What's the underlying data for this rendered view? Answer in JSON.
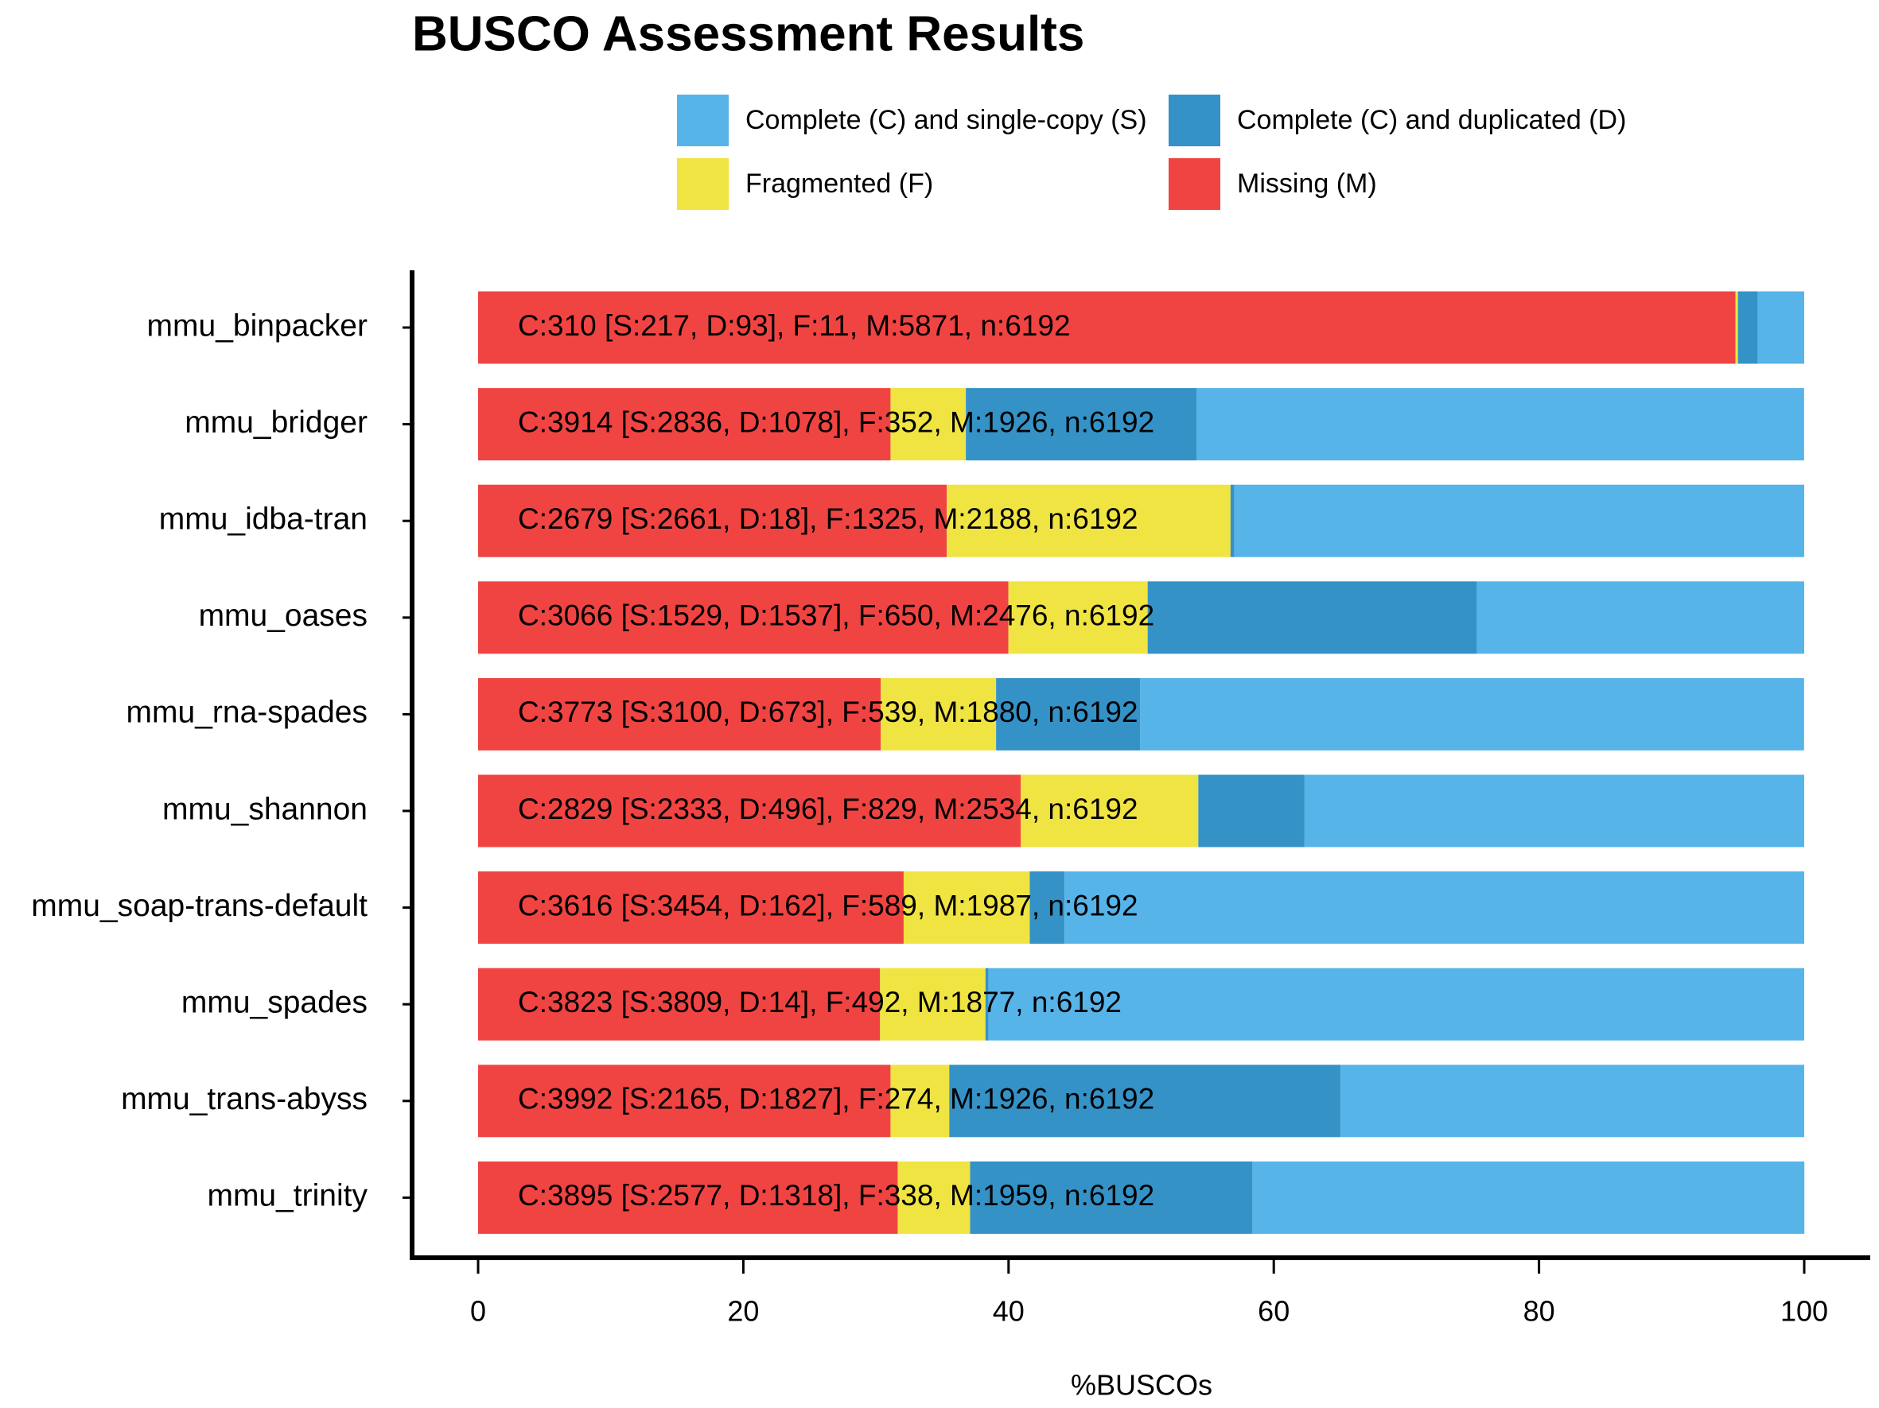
{
  "chart_data": {
    "type": "stacked-bar-horizontal",
    "title": "BUSCO Assessment Results",
    "x_label": "%BUSCOs",
    "categories": [
      "mmu_binpacker",
      "mmu_bridger",
      "mmu_idba-tran",
      "mmu_oases",
      "mmu_rna-spades",
      "mmu_shannon",
      "mmu_soap-trans-default",
      "mmu_spades",
      "mmu_trans-abyss",
      "mmu_trinity"
    ],
    "series": [
      {
        "name": "Complete (C) and single-copy (S)",
        "color": "#56b4e9",
        "values": [
          3.5,
          45.8,
          42.97,
          24.69,
          50.06,
          37.68,
          55.78,
          61.51,
          34.96,
          41.62
        ]
      },
      {
        "name": "Complete (C) and duplicated (D)",
        "color": "#3492c7",
        "values": [
          1.5,
          17.41,
          0.29,
          24.82,
          10.87,
          8.01,
          2.62,
          0.23,
          29.51,
          21.29
        ]
      },
      {
        "name": "Fragmented (F)",
        "color": "#f0e442",
        "values": [
          0.18,
          5.68,
          21.4,
          10.5,
          8.7,
          13.39,
          9.51,
          7.95,
          4.43,
          5.46
        ]
      },
      {
        "name": "Missing (M)",
        "color": "#f04442",
        "values": [
          94.82,
          31.1,
          35.34,
          39.99,
          30.36,
          40.92,
          32.09,
          30.31,
          31.1,
          31.64
        ]
      }
    ],
    "annotations": [
      "C:310 [S:217, D:93], F:11, M:5871, n:6192",
      "C:3914 [S:2836, D:1078], F:352, M:1926, n:6192",
      "C:2679 [S:2661, D:18], F:1325, M:2188, n:6192",
      "C:3066 [S:1529, D:1537], F:650, M:2476, n:6192",
      "C:3773 [S:3100, D:673], F:539, M:1880, n:6192",
      "C:2829 [S:2333, D:496], F:829, M:2534, n:6192",
      "C:3616 [S:3454, D:162], F:589, M:1987, n:6192",
      "C:3823 [S:3809, D:14], F:492, M:1877, n:6192",
      "C:3992 [S:2165, D:1827], F:274, M:1926, n:6192",
      "C:3895 [S:2577, D:1318], F:338, M:1959, n:6192"
    ],
    "xlim": [
      0,
      100
    ],
    "xticks": [
      0,
      20,
      40,
      60,
      80,
      100
    ],
    "grid": false
  }
}
